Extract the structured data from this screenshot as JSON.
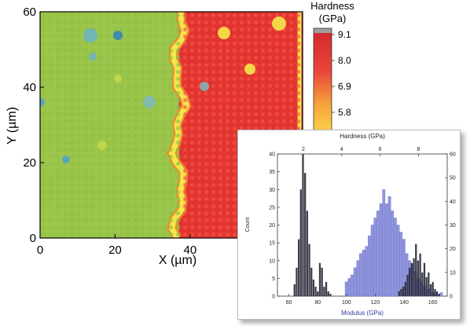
{
  "chart_data": [
    {
      "type": "heatmap",
      "title": "",
      "xlabel": "X (µm)",
      "ylabel": "Y (µm)",
      "xlim": [
        0,
        70
      ],
      "ylim": [
        0,
        60
      ],
      "xticks": [
        0,
        20,
        40
      ],
      "yticks": [
        0,
        20,
        40,
        60
      ],
      "xtick_labels": [
        "0",
        "20",
        "40"
      ],
      "ytick_labels": [
        "0",
        "20",
        "40",
        "60"
      ],
      "boundary_x_um": 37,
      "low_region_hardness_gpa": 2.0,
      "high_region_hardness_gpa": 8.3,
      "colorbar": {
        "title_line1": "Hardness",
        "title_line2": "(GPa)",
        "ticks": [
          9.1,
          8.0,
          6.9,
          5.8
        ],
        "tick_labels": [
          "9.1",
          "8.0",
          "6.9",
          "5.8"
        ]
      }
    },
    {
      "type": "bar",
      "title": "",
      "xlabel": "Modulus (GPa)",
      "ylabel": "Count",
      "top_xlabel": "Hardness (GPa)",
      "xlim": [
        52,
        170
      ],
      "ylim": [
        0,
        40
      ],
      "xticks": [
        60,
        80,
        100,
        120,
        140,
        160
      ],
      "xtick_labels": [
        "60",
        "80",
        "100",
        "120",
        "140",
        "160"
      ],
      "yticks": [
        0,
        5,
        10,
        15,
        20,
        25,
        30,
        35,
        40
      ],
      "ytick_labels": [
        "0",
        "5",
        "10",
        "15",
        "20",
        "25",
        "30",
        "35",
        "40"
      ],
      "top_xlim": [
        0.65,
        9.5
      ],
      "top_xticks": [
        2,
        4,
        6,
        8
      ],
      "top_xtick_labels": [
        "2",
        "4",
        "6",
        "8"
      ],
      "right_ylim": [
        0,
        60
      ],
      "right_yticks": [
        0,
        10,
        20,
        30,
        40,
        50,
        60
      ],
      "right_ytick_labels": [
        "0",
        "10",
        "20",
        "30",
        "40",
        "50",
        "60"
      ],
      "series": [
        {
          "name": "",
          "color": "#8f95dd",
          "axis": "bottom-left",
          "bin_width": 2,
          "x": [
            58,
            60,
            62,
            64,
            66,
            68,
            70,
            72,
            74,
            76,
            78,
            80,
            82,
            84,
            86,
            88,
            90,
            92,
            94,
            96,
            98,
            100,
            102,
            104,
            106,
            108,
            110,
            112,
            114,
            116,
            118,
            120,
            122,
            124,
            126,
            128,
            130,
            132,
            134,
            136,
            138,
            140,
            142,
            144,
            146,
            148,
            150,
            152,
            154,
            156,
            158,
            160,
            162,
            164,
            166,
            168
          ],
          "values": [
            0,
            0,
            0,
            0,
            0,
            0,
            0,
            0,
            0,
            0,
            0,
            0,
            0,
            0,
            0,
            0,
            0,
            0,
            0,
            0,
            0,
            4,
            5,
            6,
            8,
            10,
            12,
            13,
            14,
            17,
            20,
            22,
            24,
            26,
            30,
            26,
            28,
            24,
            22,
            20,
            18,
            16,
            12,
            10,
            9,
            7,
            5,
            4,
            3,
            2,
            2,
            1,
            1,
            0,
            1,
            0
          ]
        },
        {
          "name": "",
          "color": "#2c2e3c",
          "axis": "top-right",
          "bin_width": 0.11,
          "x": [
            1.55,
            1.66,
            1.77,
            1.88,
            1.99,
            2.1,
            2.21,
            2.32,
            2.43,
            2.54,
            2.65,
            2.76,
            2.87,
            2.98,
            3.09,
            3.2,
            3.31,
            3.42,
            7.0,
            7.11,
            7.22,
            7.33,
            7.44,
            7.55,
            7.66,
            7.77,
            7.88,
            7.99,
            8.1,
            8.21,
            8.32,
            8.43,
            8.54,
            8.65,
            8.76,
            8.87,
            8.98,
            9.09
          ],
          "values": [
            5,
            12,
            24,
            45,
            60,
            52,
            36,
            22,
            12,
            7,
            4,
            2,
            14,
            12,
            4,
            6,
            2,
            1,
            2,
            3,
            4,
            6,
            9,
            12,
            14,
            16,
            22,
            15,
            18,
            10,
            14,
            8,
            10,
            5,
            6,
            3,
            2,
            1
          ]
        }
      ]
    }
  ]
}
